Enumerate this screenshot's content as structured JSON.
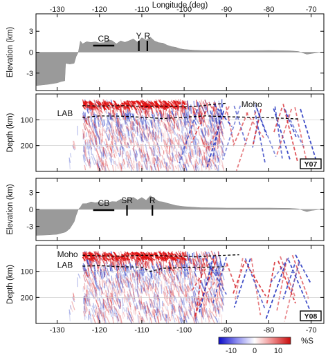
{
  "chart_data": [
    {
      "type": "area",
      "panel": "elevation-top",
      "xlabel": "Longitude (deg)",
      "ylabel": "Elevation (km)",
      "xlim": [
        -135,
        -67
      ],
      "ylim": [
        -5.5,
        5.5
      ],
      "x_ticks": [
        "-130",
        "-120",
        "-110",
        "-100",
        "-90",
        "-80",
        "-70"
      ],
      "y_ticks": [
        "3",
        "0",
        "-3"
      ],
      "profile": {
        "x": [
          -135,
          -132,
          -131,
          -130,
          -129,
          -128.2,
          -128,
          -127,
          -126,
          -125.5,
          -125,
          -124.5,
          -124,
          -123,
          -122,
          -121,
          -120,
          -119,
          -118,
          -117,
          -116,
          -115,
          -114,
          -113,
          -112,
          -111,
          -110,
          -109,
          -108,
          -107,
          -106,
          -105,
          -104,
          -103,
          -102,
          -101,
          -100,
          -99,
          -98,
          -97,
          -96,
          -95,
          -90,
          -85,
          -80,
          -75,
          -73,
          -71,
          -70,
          -69,
          -68,
          -67
        ],
        "y": [
          -4.8,
          -4.6,
          -4.5,
          -4.4,
          -4.2,
          -4.1,
          -1.6,
          -1.7,
          -1.6,
          -0.6,
          0.0,
          1.6,
          1.2,
          1.6,
          1.4,
          1.5,
          1.3,
          1.4,
          1.8,
          1.6,
          1.3,
          1.6,
          1.4,
          1.6,
          1.9,
          1.5,
          2.0,
          1.7,
          2.2,
          1.6,
          1.3,
          1.2,
          1.0,
          0.8,
          0.7,
          0.5,
          0.4,
          0.35,
          0.3,
          0.28,
          0.25,
          0.25,
          0.22,
          0.22,
          0.25,
          0.2,
          0.1,
          -0.3,
          -0.2,
          -0.1,
          0.0,
          0.0
        ]
      },
      "annotations": [
        {
          "text": "CB",
          "x": -119,
          "bar_from": -121.5,
          "bar_to": -116.5
        },
        {
          "text": "Y",
          "x": -110.7
        },
        {
          "text": "R",
          "x": -108.7
        }
      ]
    },
    {
      "type": "heatmap",
      "panel": "velocity-top",
      "ylabel": "Depth (km)",
      "xlim": [
        -135,
        -67
      ],
      "ylim": [
        300,
        0
      ],
      "x_ticks": [
        "-130",
        "-120",
        "-110",
        "-100",
        "-90",
        "-80",
        "-70"
      ],
      "y_ticks": [
        "100",
        "200"
      ],
      "tag": "Y07",
      "moho": {
        "x": [
          -124,
          -120,
          -115,
          -110,
          -105,
          -100,
          -97,
          -93,
          -90
        ],
        "depth": [
          45,
          47,
          45,
          48,
          47,
          50,
          48,
          40,
          36
        ]
      },
      "lab": {
        "x": [
          -124,
          -120,
          -115,
          -110,
          -105,
          -100,
          -95,
          -90,
          -85,
          -80,
          -75,
          -73
        ],
        "depth": [
          92,
          85,
          86,
          90,
          95,
          90,
          85,
          88,
          90,
          92,
          95,
          97
        ]
      },
      "labels": [
        {
          "text": "Moho",
          "x": -86.5,
          "depth": 40
        },
        {
          "text": "LAB",
          "x": -130,
          "depth": 75
        }
      ]
    },
    {
      "type": "area",
      "panel": "elevation-bottom",
      "ylabel": "Elevation (km)",
      "xlim": [
        -135,
        -67
      ],
      "ylim": [
        -5.5,
        5.5
      ],
      "x_ticks": [
        "-130",
        "-120",
        "-110",
        "-100",
        "-90",
        "-80",
        "-70"
      ],
      "y_ticks": [
        "3",
        "0",
        "-3"
      ],
      "profile": {
        "x": [
          -135,
          -132,
          -130,
          -128,
          -127,
          -126,
          -125.5,
          -125,
          -124.5,
          -124,
          -123,
          -122,
          -121,
          -120,
          -119,
          -118,
          -117,
          -116,
          -115,
          -114,
          -113,
          -112,
          -111,
          -110,
          -109,
          -108,
          -107,
          -106,
          -105,
          -104,
          -103,
          -102,
          -101,
          -100,
          -99,
          -98,
          -97,
          -96,
          -95,
          -90,
          -85,
          -80,
          -75,
          -73,
          -71,
          -70,
          -69,
          -68,
          -67
        ],
        "y": [
          -4.6,
          -4.5,
          -4.4,
          -4.0,
          -3.4,
          -2.2,
          -1.0,
          0.0,
          0.4,
          1.0,
          1.1,
          1.3,
          1.1,
          1.2,
          1.3,
          1.2,
          1.5,
          1.4,
          1.7,
          1.6,
          1.8,
          2.2,
          1.6,
          2.0,
          1.6,
          2.3,
          1.8,
          1.4,
          1.3,
          1.1,
          0.9,
          0.7,
          0.6,
          0.5,
          0.45,
          0.4,
          0.35,
          0.3,
          0.3,
          0.25,
          0.25,
          0.25,
          0.2,
          0.1,
          -0.4,
          -0.2,
          -0.1,
          0.0,
          0.0
        ]
      },
      "annotations": [
        {
          "text": "CB",
          "x": -119,
          "bar_from": -121.5,
          "bar_to": -116.5
        },
        {
          "text": "SR",
          "x": -113.5
        },
        {
          "text": "R",
          "x": -107.5
        }
      ]
    },
    {
      "type": "heatmap",
      "panel": "velocity-bottom",
      "ylabel": "Depth (km)",
      "xlim": [
        -135,
        -67
      ],
      "ylim": [
        300,
        0
      ],
      "x_ticks": [
        "-130",
        "-120",
        "-110",
        "-100",
        "-90",
        "-80",
        "-70"
      ],
      "y_ticks": [
        "100",
        "200"
      ],
      "tag": "Y08",
      "moho": {
        "x": [
          -124,
          -120,
          -115,
          -110,
          -105,
          -100,
          -97,
          -93,
          -90,
          -87
        ],
        "depth": [
          38,
          40,
          42,
          38,
          40,
          42,
          44,
          40,
          38,
          36
        ]
      },
      "lab": {
        "x": [
          -124,
          -120,
          -115,
          -110,
          -108,
          -105,
          -100,
          -95,
          -90
        ],
        "depth": [
          80,
          78,
          82,
          84,
          100,
          88,
          86,
          84,
          82
        ]
      },
      "labels": [
        {
          "text": "Moho",
          "x": -130,
          "depth": 35
        },
        {
          "text": "LAB",
          "x": -130,
          "depth": 75
        }
      ]
    }
  ],
  "colorbar": {
    "label": "%S",
    "ticks": [
      "-10",
      "0",
      "10"
    ],
    "range": [
      -15,
      15
    ],
    "colors": [
      "#1010d0",
      "#ffffff",
      "#d01010"
    ]
  }
}
